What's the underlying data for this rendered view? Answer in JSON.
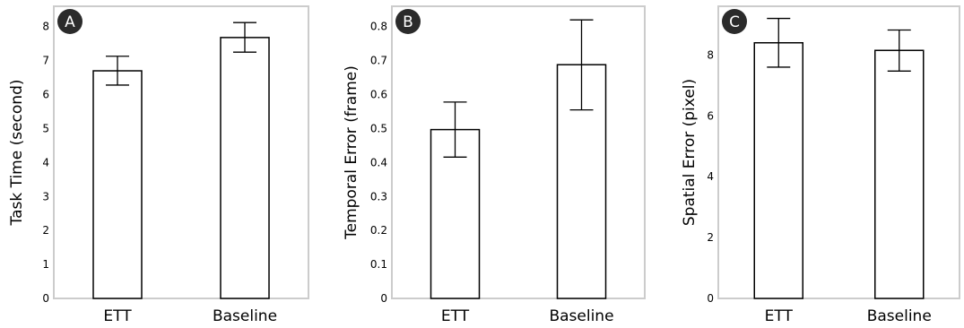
{
  "chart_data": [
    {
      "type": "bar",
      "panel_label": "A",
      "ylabel": "Task Time (second)",
      "categories": [
        "ETT",
        "Baseline"
      ],
      "values": [
        6.7,
        7.68
      ],
      "error_low": [
        6.28,
        7.25
      ],
      "error_high": [
        7.13,
        8.12
      ],
      "ylim": [
        0,
        8.6
      ],
      "yticks": [
        0,
        1,
        2,
        3,
        4,
        5,
        6,
        7,
        8
      ],
      "ytick_labels": [
        "0",
        "1",
        "2",
        "3",
        "4",
        "5",
        "6",
        "7",
        "8"
      ],
      "grid": false
    },
    {
      "type": "bar",
      "panel_label": "B",
      "ylabel": "Temporal Error (frame)",
      "categories": [
        "ETT",
        "Baseline"
      ],
      "values": [
        0.497,
        0.688
      ],
      "error_low": [
        0.416,
        0.555
      ],
      "error_high": [
        0.578,
        0.82
      ],
      "ylim": [
        0,
        0.86
      ],
      "yticks": [
        0,
        0.1,
        0.2,
        0.3,
        0.4,
        0.5,
        0.6,
        0.7,
        0.8
      ],
      "ytick_labels": [
        "0",
        "0.1",
        "0.2",
        "0.3",
        "0.4",
        "0.5",
        "0.6",
        "0.7",
        "0.8"
      ],
      "grid": false
    },
    {
      "type": "bar",
      "panel_label": "C",
      "ylabel": "Spatial Error (pixel)",
      "categories": [
        "ETT",
        "Baseline"
      ],
      "values": [
        8.4,
        8.15
      ],
      "error_low": [
        7.6,
        7.47
      ],
      "error_high": [
        9.2,
        8.82
      ],
      "ylim": [
        0,
        9.6
      ],
      "yticks": [
        0,
        2,
        4,
        6,
        8
      ],
      "ytick_labels": [
        "0",
        "2",
        "4",
        "6",
        "8"
      ],
      "grid": false
    }
  ]
}
